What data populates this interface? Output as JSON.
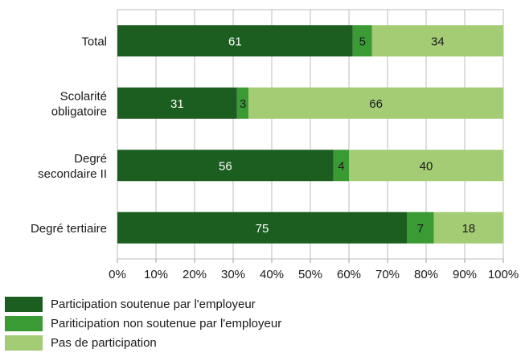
{
  "chart_data": {
    "type": "bar",
    "orientation": "horizontal",
    "stacked": true,
    "categories": [
      "Total",
      "Scolarité obligatoire",
      "Degré secondaire II",
      "Degré tertiaire"
    ],
    "category_lines": [
      [
        "Total"
      ],
      [
        "Scolarité",
        "obligatoire"
      ],
      [
        "Degré",
        "secondaire II"
      ],
      [
        "Degré tertiaire"
      ]
    ],
    "series": [
      {
        "name": "Participation soutenue par l'employeur",
        "values": [
          61,
          31,
          56,
          75
        ],
        "color": "#1b5e20"
      },
      {
        "name": "Pariticipation non soutenue par l'employeur",
        "values": [
          5,
          3,
          4,
          7
        ],
        "color": "#3a9b35"
      },
      {
        "name": "Pas de participation",
        "values": [
          34,
          66,
          40,
          18
        ],
        "color": "#a3cc75"
      }
    ],
    "data_label_colors": [
      "#ffffff",
      "#1a1a1a",
      "#1a1a1a"
    ],
    "xlim": [
      0,
      100
    ],
    "xticks": [
      0,
      10,
      20,
      30,
      40,
      50,
      60,
      70,
      80,
      90,
      100
    ],
    "xtick_labels": [
      "0%",
      "10%",
      "20%",
      "30%",
      "40%",
      "50%",
      "60%",
      "70%",
      "80%",
      "90%",
      "100%"
    ],
    "grid": true,
    "legend_position": "bottom-left",
    "title": "",
    "xlabel": "",
    "ylabel": ""
  }
}
